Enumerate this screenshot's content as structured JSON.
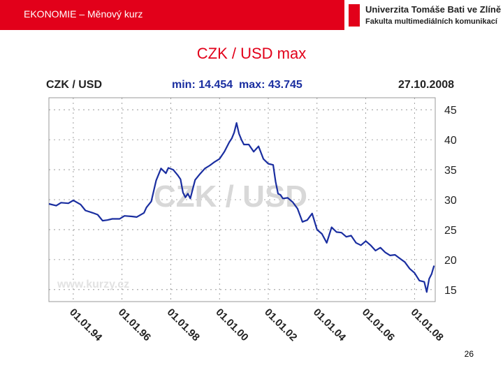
{
  "header": {
    "title": "EKONOMIE – Měnový kurz"
  },
  "logo": {
    "line1": "Univerzita Tomáše Bati ve Zlíně",
    "line2": "Fakulta multimediálních komunikací"
  },
  "slide_title": "CZK / USD max",
  "page_number": "26",
  "colors": {
    "brand_red": "#e2001a",
    "series": "#1a2ea0",
    "grid": "#888888"
  },
  "chart_data": {
    "type": "line",
    "title": "CZK / USD",
    "stats": "min: 14.454  max: 43.745",
    "date": "27.10.2008",
    "watermark": "CZK / USD",
    "source_watermark": "www.kurzy.cz",
    "xlabel": "",
    "ylabel": "",
    "ylim": [
      13,
      47
    ],
    "xlim": [
      1993.0,
      2008.85
    ],
    "yticks": [
      15,
      20,
      25,
      30,
      35,
      40,
      45
    ],
    "xtick_labels": [
      "01.01.94",
      "01.01.96",
      "01.01.98",
      "01.01.00",
      "01.01.02",
      "01.01.04",
      "01.01.06",
      "01.01.08"
    ],
    "xtick_values": [
      1994,
      1996,
      1998,
      2000,
      2002,
      2004,
      2006,
      2008
    ],
    "grid": true,
    "series": [
      {
        "x": [
          1993.0,
          1993.3,
          1993.5,
          1993.8,
          1994.0,
          1994.3,
          1994.5,
          1994.8,
          1995.0,
          1995.2,
          1995.4,
          1995.6,
          1995.9,
          1996.1,
          1996.4,
          1996.6,
          1996.9,
          1997.0,
          1997.2,
          1997.4,
          1997.5,
          1997.6,
          1997.8,
          1997.9,
          1998.1,
          1998.3,
          1998.4,
          1998.5,
          1998.6,
          1998.7,
          1998.8,
          1999.0,
          1999.2,
          1999.4,
          1999.6,
          1999.8,
          2000.0,
          2000.2,
          2000.4,
          2000.5,
          2000.6,
          2000.7,
          2000.8,
          2000.9,
          2001.0,
          2001.2,
          2001.4,
          2001.6,
          2001.8,
          2002.0,
          2002.2,
          2002.3,
          2002.4,
          2002.5,
          2002.6,
          2002.8,
          2003.0,
          2003.2,
          2003.4,
          2003.6,
          2003.8,
          2004.0,
          2004.2,
          2004.4,
          2004.6,
          2004.8,
          2005.0,
          2005.2,
          2005.4,
          2005.6,
          2005.8,
          2006.0,
          2006.2,
          2006.4,
          2006.6,
          2006.8,
          2007.0,
          2007.2,
          2007.4,
          2007.6,
          2007.8,
          2008.0,
          2008.2,
          2008.4,
          2008.5,
          2008.6,
          2008.7,
          2008.8
        ],
        "values": [
          29.3,
          29.0,
          29.5,
          29.4,
          29.9,
          29.2,
          28.2,
          27.8,
          27.5,
          26.5,
          26.6,
          26.8,
          26.8,
          27.3,
          27.2,
          27.1,
          27.8,
          28.7,
          29.7,
          33.2,
          34.2,
          35.2,
          34.4,
          35.3,
          35.0,
          34.0,
          33.4,
          31.2,
          30.4,
          31.0,
          30.2,
          33.3,
          34.3,
          35.2,
          35.7,
          36.3,
          36.8,
          38.0,
          39.6,
          40.2,
          41.2,
          42.8,
          41.0,
          40.0,
          39.2,
          39.2,
          38.0,
          38.9,
          36.8,
          36.0,
          35.8,
          33.0,
          31.0,
          30.8,
          30.2,
          30.3,
          29.6,
          28.5,
          26.3,
          26.6,
          27.7,
          25.0,
          24.3,
          22.8,
          25.4,
          24.6,
          24.5,
          23.8,
          24.0,
          22.8,
          22.4,
          23.1,
          22.4,
          21.5,
          22.0,
          21.2,
          20.7,
          20.8,
          20.2,
          19.6,
          18.5,
          17.8,
          16.5,
          16.3,
          14.6,
          16.8,
          17.6,
          19.0
        ]
      }
    ]
  }
}
